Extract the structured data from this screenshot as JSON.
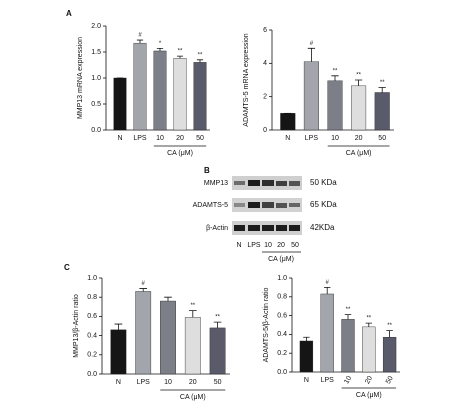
{
  "panel_labels": [
    "A",
    "B",
    "C"
  ],
  "chart_data": [
    {
      "type": "bar",
      "y_label": "MMP13 mRNA expression",
      "categories": [
        "N",
        "LPS",
        "10",
        "20",
        "50"
      ],
      "group_label": "CA (μM)",
      "values": [
        1.0,
        1.67,
        1.52,
        1.38,
        1.3
      ],
      "errors": [
        0.0,
        0.06,
        0.05,
        0.04,
        0.05
      ],
      "colors": [
        "#151515",
        "#a2a5ac",
        "#7c7f88",
        "#dedede",
        "#595b6a"
      ],
      "annotations": [
        null,
        "#",
        "*",
        "**",
        "**"
      ],
      "ylim": [
        0,
        2.0
      ],
      "yticks": [
        {
          "value": 0,
          "label": "0.0"
        },
        0.5,
        {
          "value": 1.0,
          "label": "1.0"
        },
        1.5,
        {
          "value": 2.0,
          "label": "2.0"
        }
      ]
    },
    {
      "type": "bar",
      "y_label": "ADAMTS-5 mRNA expression",
      "categories": [
        "N",
        "LPS",
        "10",
        "20",
        "50"
      ],
      "group_label": "CA (μM)",
      "values": [
        1.0,
        4.1,
        2.95,
        2.65,
        2.25
      ],
      "errors": [
        0.0,
        0.8,
        0.3,
        0.35,
        0.3
      ],
      "colors": [
        "#151515",
        "#a2a5ac",
        "#7c7f88",
        "#dedede",
        "#595b6a"
      ],
      "annotations": [
        null,
        "#",
        "**",
        "**",
        "**"
      ],
      "ylim": [
        0,
        6
      ],
      "yticks": [
        0,
        2,
        4,
        6
      ]
    },
    {
      "type": "bar",
      "y_label": "MMP13/β-Actin ratio",
      "categories": [
        "N",
        "LPS",
        "10",
        "20",
        "50"
      ],
      "group_label": "CA (μM)",
      "values": [
        0.46,
        0.86,
        0.76,
        0.59,
        0.48
      ],
      "errors": [
        0.06,
        0.03,
        0.04,
        0.07,
        0.06
      ],
      "colors": [
        "#151515",
        "#a2a5ac",
        "#7c7f88",
        "#dedede",
        "#595b6a"
      ],
      "annotations": [
        null,
        "#",
        null,
        "**",
        "**"
      ],
      "ylim": [
        0,
        1.0
      ],
      "yticks": [
        {
          "value": 0,
          "label": "0.0"
        },
        0.2,
        0.4,
        0.6,
        0.8,
        {
          "value": 1.0,
          "label": "1.0"
        }
      ]
    },
    {
      "type": "bar",
      "y_label": "ADAMTS-5/β-Actin ratio",
      "categories": [
        "N",
        "LPS",
        "10",
        "20",
        "50"
      ],
      "group_label": "CA (μM)",
      "values": [
        0.33,
        0.83,
        0.56,
        0.48,
        0.37
      ],
      "errors": [
        0.04,
        0.07,
        0.05,
        0.04,
        0.07
      ],
      "colors": [
        "#151515",
        "#a2a5ac",
        "#7c7f88",
        "#dedede",
        "#595b6a"
      ],
      "annotations": [
        null,
        "#",
        "**",
        "**",
        "**"
      ],
      "ylim": [
        0,
        1.0
      ],
      "yticks": [
        {
          "value": 0,
          "label": "0.0"
        },
        0.2,
        0.4,
        0.6,
        0.8,
        {
          "value": 1.0,
          "label": "1.0"
        }
      ]
    }
  ],
  "blot": {
    "rows": [
      "MMP13",
      "ADAMTS-5",
      "β-Actin"
    ],
    "sizes": [
      "50 KDa",
      "65 KDa",
      "42KDa"
    ],
    "lanes": [
      "N",
      "LPS",
      "10",
      "20",
      "50"
    ],
    "group_label": "CA (μM)"
  }
}
